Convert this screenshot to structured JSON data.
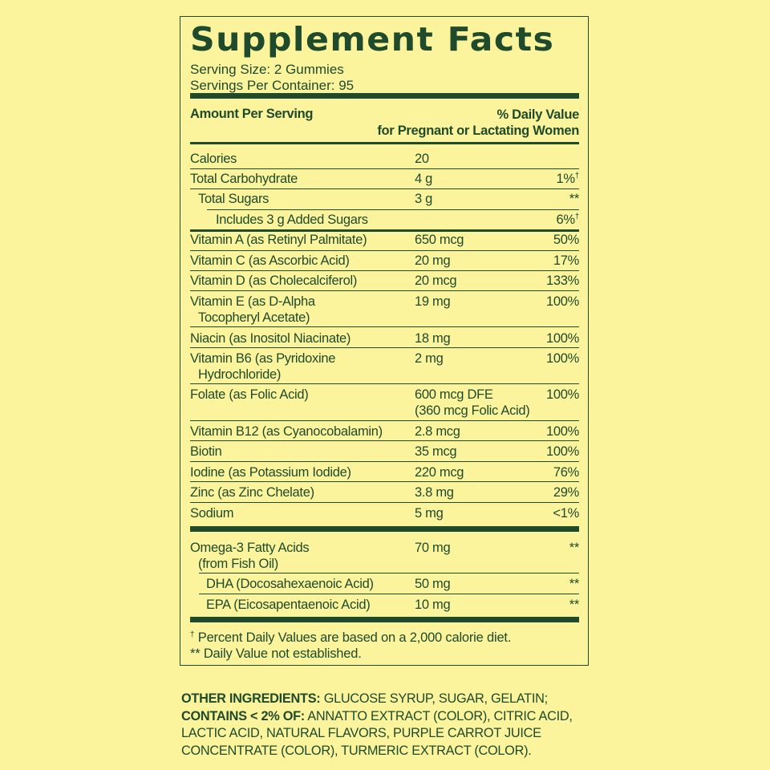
{
  "panel": {
    "title": "Supplement Facts",
    "serving_size": "Serving Size: 2 Gummies",
    "servings_per_container": "Servings Per Container: 95",
    "header_left": "Amount Per Serving",
    "header_right_1": "% Daily Value",
    "header_right_2": "for Pregnant or Lactating Women",
    "rows": [
      {
        "name": "Calories",
        "amount": "20",
        "dv": ""
      },
      {
        "name": "Total Carbohydrate",
        "amount": "4 g",
        "dv": "1%",
        "dv_mark": "†"
      },
      {
        "name": "Total Sugars",
        "amount": "3 g",
        "dv": "**"
      },
      {
        "name": "Includes 3 g Added Sugars",
        "amount": "",
        "dv": "6%",
        "dv_mark": "†"
      },
      {
        "name": "Vitamin A (as Retinyl Palmitate)",
        "amount": "650 mcg",
        "dv": "50%"
      },
      {
        "name": "Vitamin C (as Ascorbic Acid)",
        "amount": "20 mg",
        "dv": "17%"
      },
      {
        "name": "Vitamin D (as Cholecalciferol)",
        "amount": "20 mcg",
        "dv": "133%"
      },
      {
        "name": "Vitamin E (as D-Alpha",
        "name2": "Tocopheryl Acetate)",
        "amount": "19 mg",
        "dv": "100%"
      },
      {
        "name": "Niacin (as Inositol Niacinate)",
        "amount": "18 mg",
        "dv": "100%"
      },
      {
        "name": "Vitamin B6 (as Pyridoxine",
        "name2": "Hydrochloride)",
        "amount": "2 mg",
        "dv": "100%"
      },
      {
        "name": "Folate (as Folic Acid)",
        "amount": "600 mcg DFE",
        "amount2": "(360 mcg Folic Acid)",
        "dv": "100%"
      },
      {
        "name": "Vitamin B12 (as Cyanocobalamin)",
        "amount": "2.8 mcg",
        "dv": "100%"
      },
      {
        "name": "Biotin",
        "amount": "35 mcg",
        "dv": "100%"
      },
      {
        "name": "Iodine (as Potassium Iodide)",
        "amount": "220 mcg",
        "dv": "76%"
      },
      {
        "name": "Zinc (as Zinc Chelate)",
        "amount": "3.8 mg",
        "dv": "29%"
      },
      {
        "name": "Sodium",
        "amount": "5 mg",
        "dv": "<1%"
      },
      {
        "name": "Omega-3 Fatty Acids",
        "name2": "(from Fish Oil)",
        "amount": "70 mg",
        "dv": "**"
      },
      {
        "name": "DHA (Docosahexaenoic Acid)",
        "amount": "50 mg",
        "dv": "**"
      },
      {
        "name": "EPA (Eicosapentaenoic Acid)",
        "amount": "10 mg",
        "dv": "**"
      }
    ],
    "footnote_mark": "†",
    "footnote_1": " Percent Daily Values are based on a 2,000 calorie diet.",
    "footnote_2": "** Daily Value not established."
  },
  "ingredients": {
    "other_label": "OTHER INGREDIENTS:",
    "other_text": " GLUCOSE SYRUP, SUGAR, GELATIN;",
    "contains_label": "CONTAINS < 2% OF:",
    "contains_text": " ANNATTO EXTRACT (COLOR), CITRIC ACID, LACTIC ACID, NATURAL FLAVORS, PURPLE CARROT JUICE CONCENTRATE (COLOR), TURMERIC EXTRACT (COLOR)."
  },
  "colors": {
    "background": "#fbf49c",
    "ink": "#1f4a2c"
  }
}
